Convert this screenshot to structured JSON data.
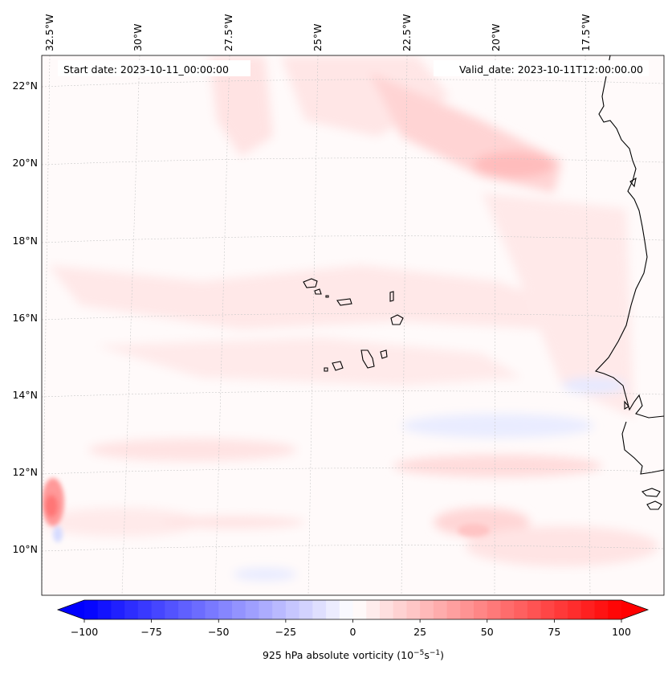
{
  "header": {
    "start_date": "Start date: 2023-10-11_00:00:00",
    "valid_date": "Valid_date: 2023-10-11T12:00:00.00"
  },
  "map": {
    "lon_labels": [
      "32.5°W",
      "30°W",
      "27.5°W",
      "25°W",
      "22.5°W",
      "20°W",
      "17.5°W"
    ],
    "lat_labels": [
      "22°N",
      "20°N",
      "18°N",
      "16°N",
      "14°N",
      "12°N",
      "10°N"
    ]
  },
  "colorbar": {
    "ticks": [
      "−100",
      "−75",
      "−50",
      "−25",
      "0",
      "25",
      "50",
      "75",
      "100"
    ],
    "label_prefix": "925 hPa absolute vorticity (10",
    "label_exp1": "−5",
    "label_mid": "s",
    "label_exp2": "−1",
    "label_suffix": ")",
    "vmin": -100,
    "vmax": 100,
    "levels": 40,
    "color_negative": "#0000ff",
    "color_positive": "#ff0000",
    "color_zero": "#ffffff"
  }
}
